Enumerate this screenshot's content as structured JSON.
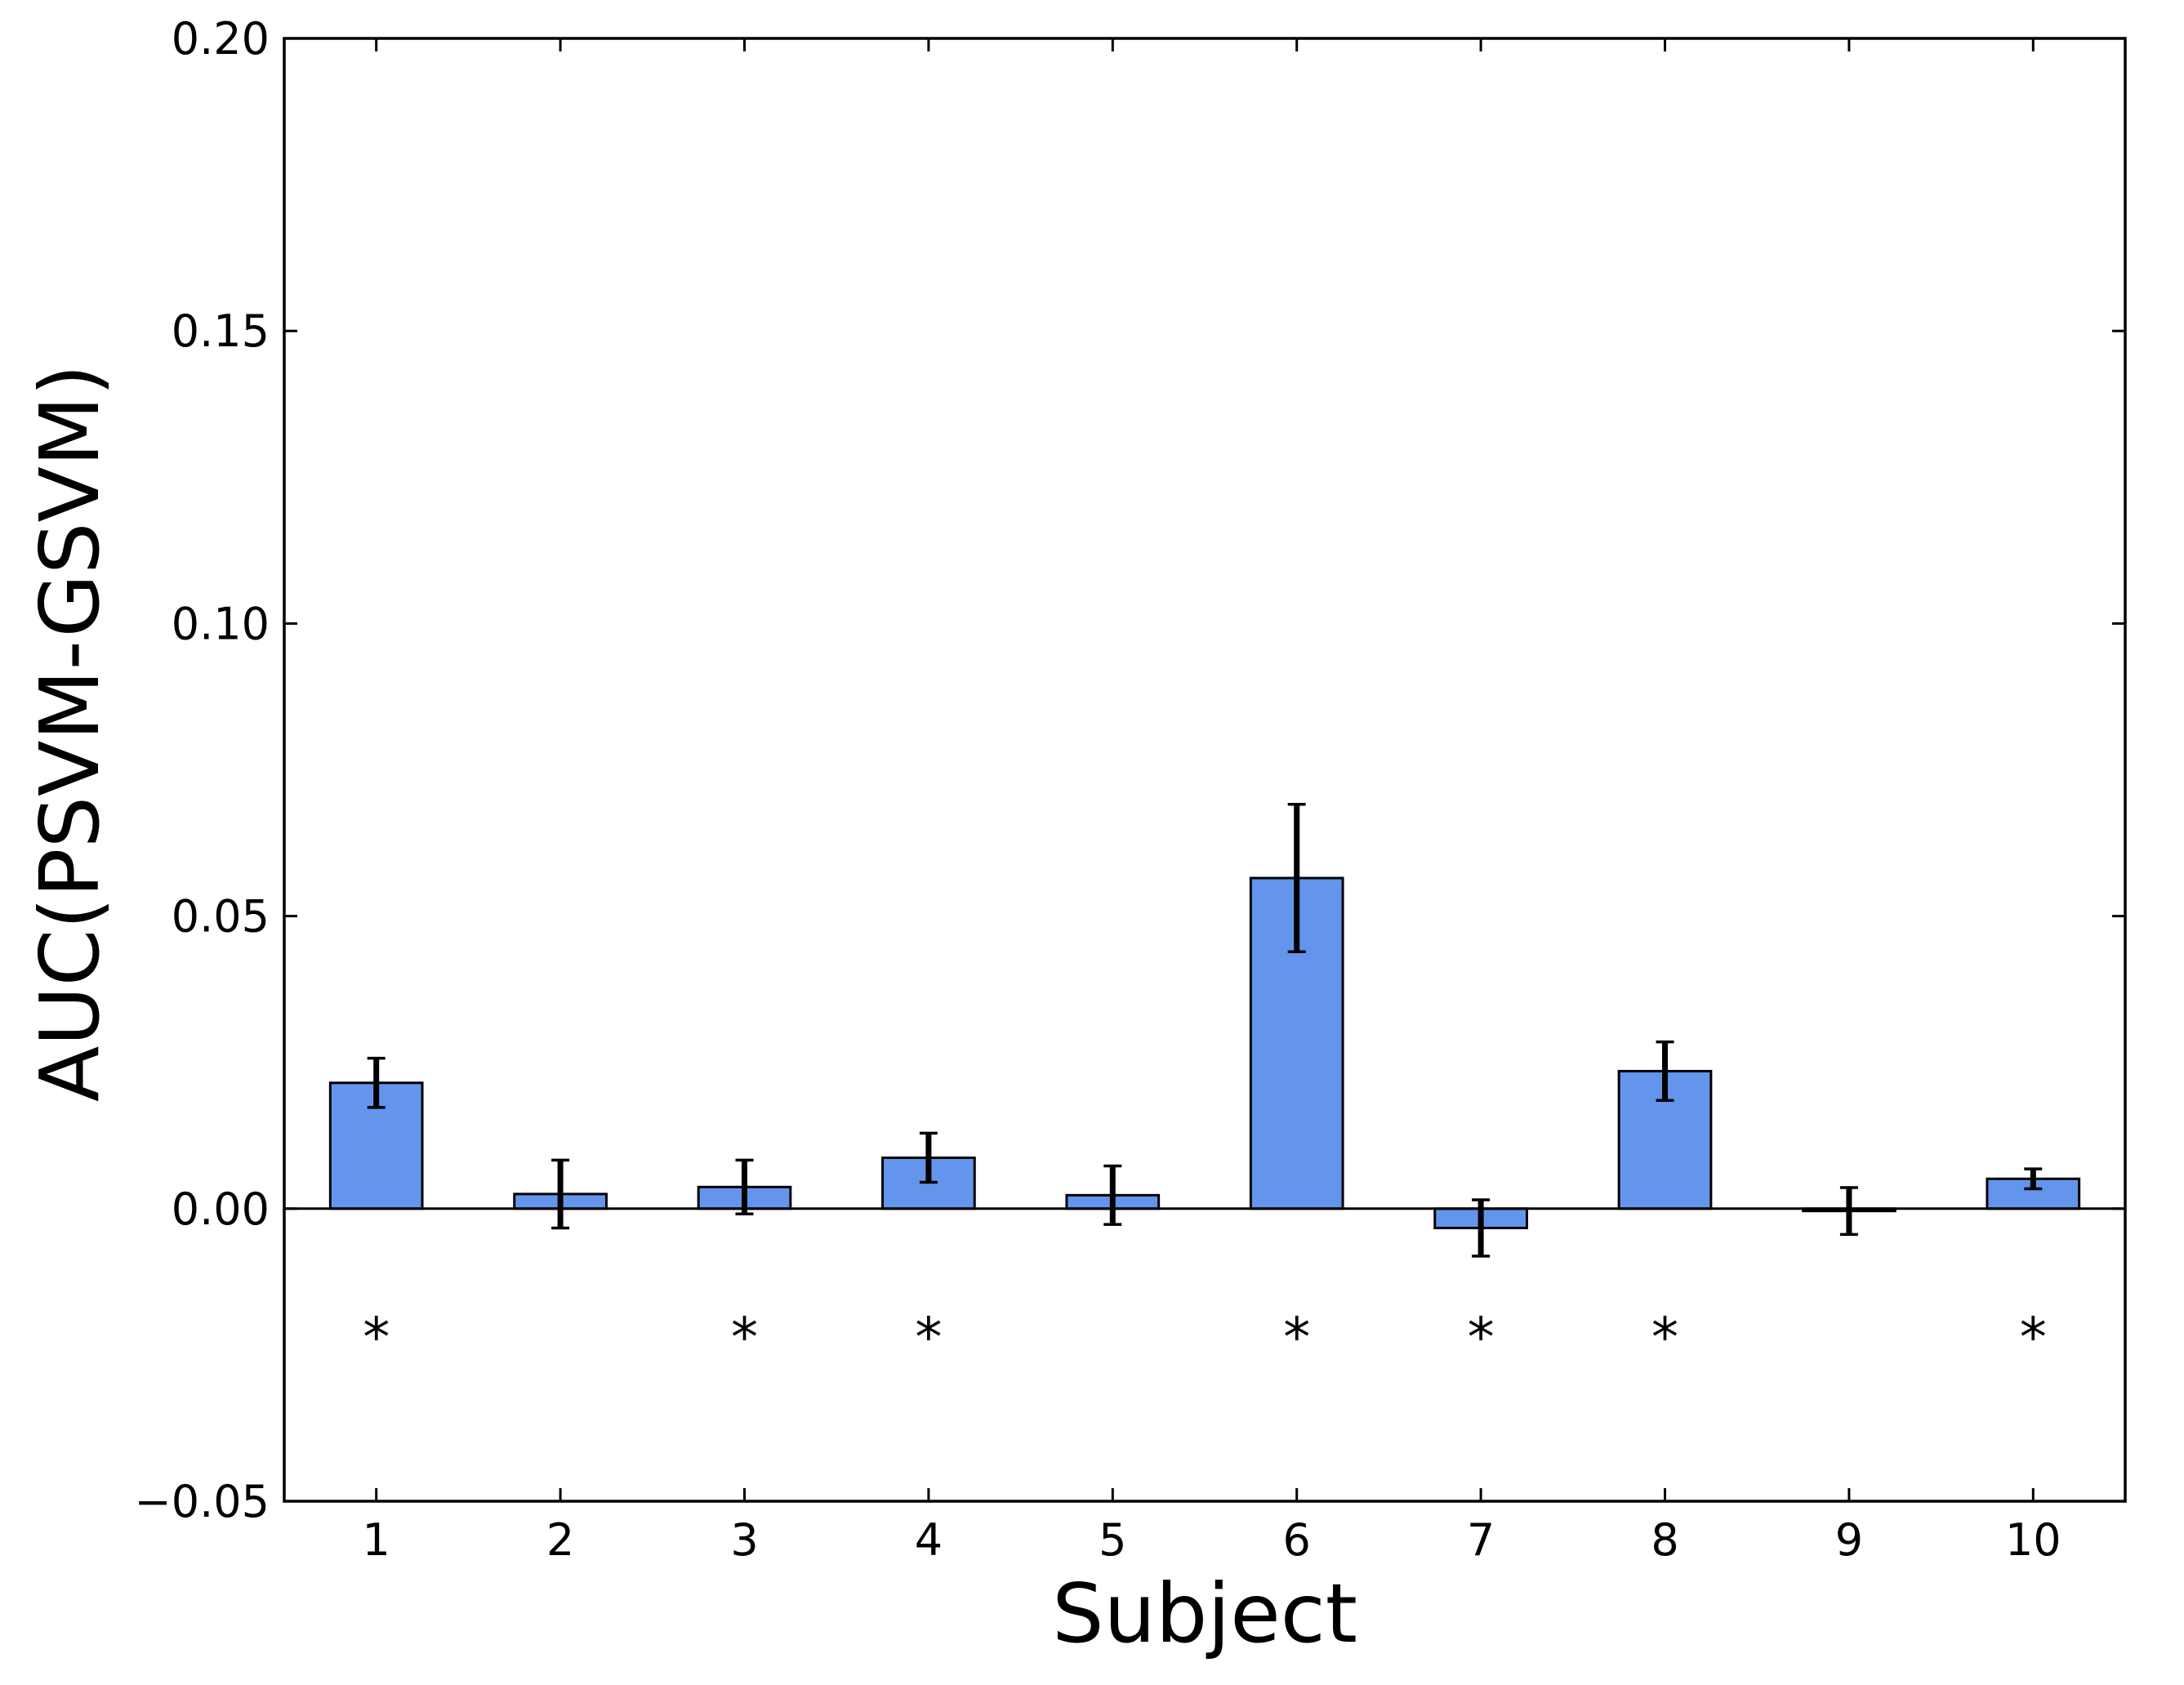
{
  "chart_data": {
    "type": "bar",
    "xlabel": "Subject",
    "ylabel": "AUC(PSVM-GSVM)",
    "categories": [
      "1",
      "2",
      "3",
      "4",
      "5",
      "6",
      "7",
      "8",
      "9",
      "10"
    ],
    "values": [
      0.0215,
      0.0025,
      0.0037,
      0.0087,
      0.0023,
      0.0565,
      -0.0033,
      0.0235,
      -0.0004,
      0.0051
    ],
    "error": [
      0.0042,
      0.0058,
      0.0046,
      0.0042,
      0.005,
      0.0126,
      0.0048,
      0.005,
      0.004,
      0.0017
    ],
    "significant": [
      true,
      false,
      true,
      true,
      false,
      true,
      true,
      true,
      false,
      true
    ],
    "significance_marker": "*",
    "significance_y": -0.019,
    "ylim": [
      -0.05,
      0.2
    ],
    "yticks": [
      -0.05,
      0.0,
      0.05,
      0.1,
      0.15,
      0.2
    ],
    "ytick_labels": [
      "−0.05",
      "0.00",
      "0.05",
      "0.10",
      "0.15",
      "0.20"
    ],
    "bar_color": "#6495ed",
    "grid": false
  }
}
